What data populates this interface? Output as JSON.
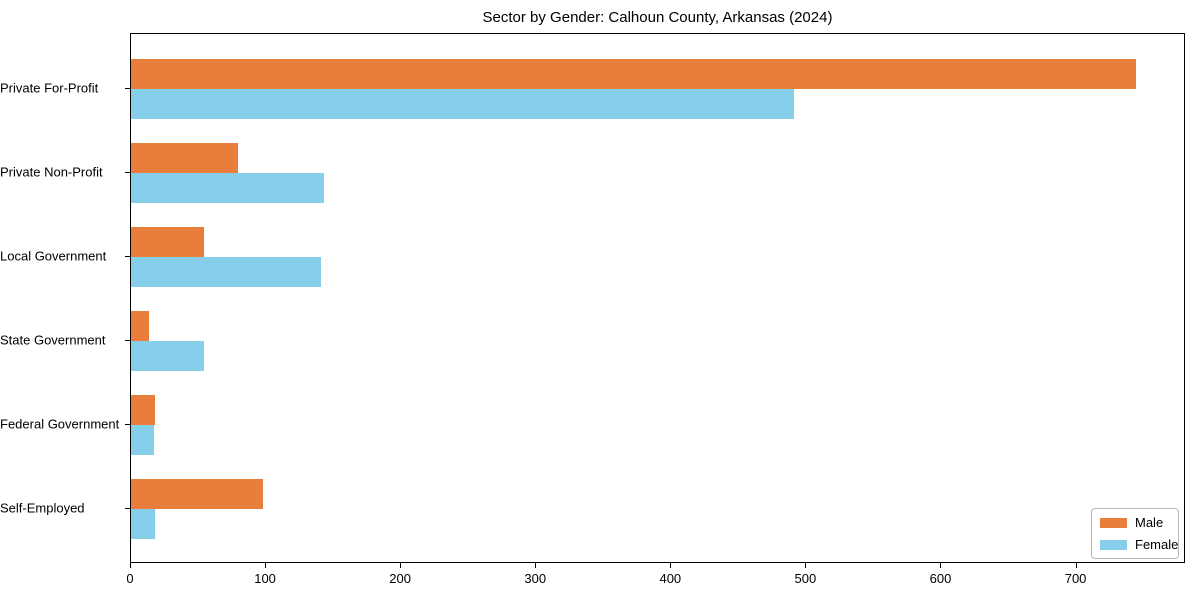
{
  "chart_data": {
    "type": "bar",
    "orientation": "horizontal",
    "title": "Sector by Gender: Calhoun County, Arkansas (2024)",
    "categories": [
      "Private For-Profit",
      "Private Non-Profit",
      "Local Government",
      "State Government",
      "Federal Government",
      "Self-Employed"
    ],
    "series": [
      {
        "name": "Male",
        "color": "#e87d3c",
        "values": [
          744,
          79,
          54,
          13,
          18,
          98
        ]
      },
      {
        "name": "Female",
        "color": "#87ceeb",
        "values": [
          491,
          143,
          141,
          54,
          17,
          18
        ]
      }
    ],
    "xlabel": "",
    "ylabel": "",
    "xlim": [
      0,
      781
    ],
    "xticks": [
      0,
      100,
      200,
      300,
      400,
      500,
      600,
      700
    ],
    "grid": false,
    "legend": {
      "position": "lower right"
    }
  }
}
